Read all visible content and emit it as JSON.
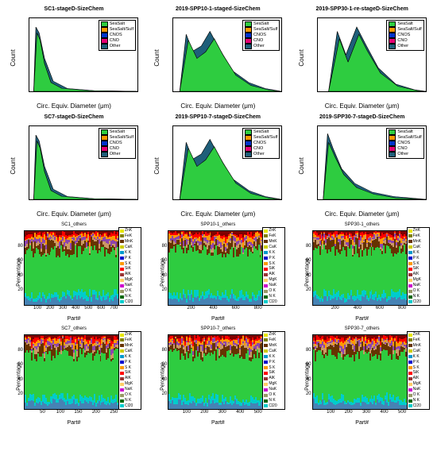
{
  "hist_legend": {
    "items": [
      "SeaSalt",
      "SeaSalt/Sulf",
      "CNOS",
      "CNO",
      "Other"
    ],
    "colors": [
      "#2ecc40",
      "#ff9900",
      "#0033cc",
      "#e60073",
      "#1f5f7a"
    ]
  },
  "hist_panels": [
    {
      "title": "SC1-stageD-SizeChem",
      "ylabel": "Count",
      "xlabel": "Circ. Equiv. Diameter (μm)",
      "yticks": [
        0,
        200,
        400,
        600
      ],
      "xticks": [
        2,
        4
      ],
      "legend_pos": "right",
      "shape": "tall-narrow"
    },
    {
      "title": "2019-SPP10-1-staged-SizeChem",
      "ylabel": "Count",
      "xlabel": "Circ. Equiv. Diameter (μm)",
      "yticks": [
        0,
        100,
        200,
        300
      ],
      "xticks": [
        0.5,
        1,
        1.5,
        2,
        2.5
      ],
      "legend_pos": "right",
      "shape": "bimodal"
    },
    {
      "title": "2019-SPP30-1-re-stageD-SizeChem",
      "ylabel": "Count",
      "xlabel": "Circ. Equiv. Diameter (μm)",
      "yticks": [
        0,
        100,
        200,
        300,
        400
      ],
      "xticks": [
        0.5,
        1,
        1.5
      ],
      "legend_pos": "right",
      "shape": "bimodal-sharp"
    },
    {
      "title": "SC7-stageD-SizeChem",
      "ylabel": "Count",
      "xlabel": "Circ. Equiv. Diameter (μm)",
      "yticks": [
        0,
        200,
        400
      ],
      "xticks": [
        2,
        4
      ],
      "legend_pos": "right",
      "shape": "tall-narrow"
    },
    {
      "title": "2019-SPP10-7-stageD-SizeChem",
      "ylabel": "Count",
      "xlabel": "Circ. Equiv. Diameter (μm)",
      "yticks": [
        0,
        100,
        200,
        300,
        400
      ],
      "xticks": [
        0.5,
        1,
        1.5,
        2,
        2.5,
        3
      ],
      "legend_pos": "right",
      "shape": "bimodal"
    },
    {
      "title": "2019-SPP30-7-stageD-SizeChem",
      "ylabel": "Count",
      "xlabel": "Circ. Equiv. Diameter (μm)",
      "yticks": [
        0,
        200,
        400,
        600
      ],
      "xticks": [
        1,
        2,
        3
      ],
      "legend_pos": "right",
      "shape": "tall-narrow-tail"
    }
  ],
  "stacked_legend": {
    "items": [
      "ZnK",
      "FeK",
      "MnK",
      "CaK",
      "K K",
      "P K",
      "S K",
      "SiK",
      "AlK",
      "MgK",
      "NaK",
      "O K",
      "N K",
      "Cl20"
    ],
    "colors": [
      "#e6e600",
      "#808000",
      "#663300",
      "#cccc00",
      "#0099cc",
      "#0000cc",
      "#ff9900",
      "#ff0000",
      "#993333",
      "#ffcc66",
      "#cc00cc",
      "#999966",
      "#006600",
      "#00cccc"
    ]
  },
  "stacked_panels": [
    {
      "title": "SC1_others",
      "ylabel": "Percentage",
      "xlabel": "Part#",
      "xticks": [
        100,
        200,
        300,
        400,
        500,
        600,
        700
      ],
      "yticks": [
        20,
        40,
        60,
        80
      ]
    },
    {
      "title": "SPP10-1_others",
      "ylabel": "Percentage",
      "xlabel": "Part#",
      "xticks": [
        200,
        400,
        600,
        800
      ],
      "yticks": [
        20,
        40,
        60,
        80
      ]
    },
    {
      "title": "SPP30-1_others",
      "ylabel": "Percentage",
      "xlabel": "Part#",
      "xticks": [
        200,
        400,
        600,
        800
      ],
      "yticks": [
        20,
        40,
        60,
        80
      ]
    },
    {
      "title": "SC7_others",
      "ylabel": "Percentage",
      "xlabel": "Part#",
      "xticks": [
        50,
        100,
        150,
        200,
        250
      ],
      "yticks": [
        20,
        40,
        60,
        80
      ]
    },
    {
      "title": "SPP10-7_others",
      "ylabel": "Percentage",
      "xlabel": "Part#",
      "xticks": [
        100,
        200,
        300,
        400,
        500
      ],
      "yticks": [
        20,
        40,
        60,
        80
      ]
    },
    {
      "title": "SPP30-7_others",
      "ylabel": "Percentage",
      "xlabel": "Part#",
      "xticks": [
        100,
        200,
        300,
        400,
        500
      ],
      "yticks": [
        20,
        40,
        60,
        80
      ]
    }
  ],
  "colors": {
    "green": "#2ecc40",
    "blue": "#1f5f7a",
    "orange": "#ff9900",
    "red": "#ff0000",
    "purple": "#8e44ad",
    "cyan": "#00cccc",
    "steelblue": "#4682b4",
    "brown": "#663300",
    "maroon": "#800000",
    "ltbrown": "#cc9966"
  }
}
